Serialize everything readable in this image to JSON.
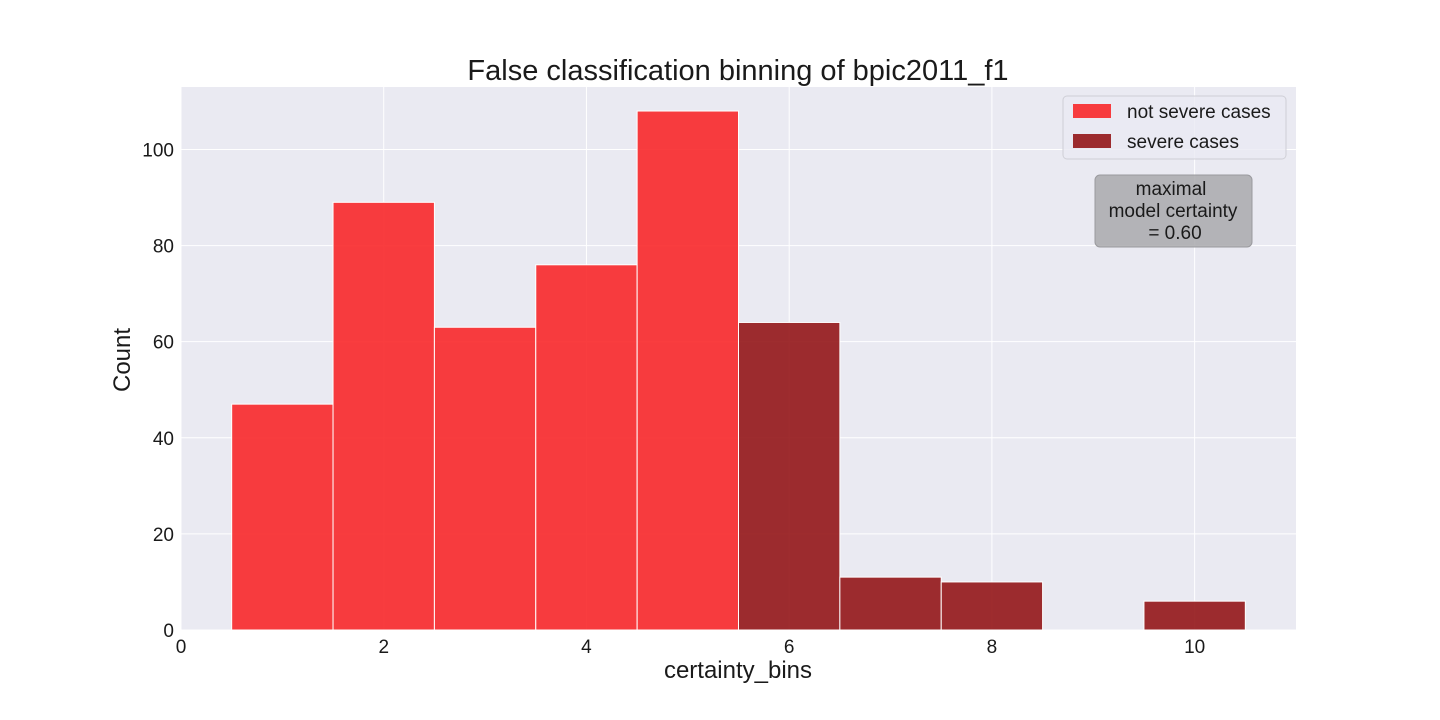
{
  "chart_data": {
    "type": "bar",
    "title": "False classification binning of bpic2011_f1",
    "xlabel": "certainty_bins",
    "ylabel": "Count",
    "xlim": [
      0,
      11
    ],
    "ylim": [
      0,
      113
    ],
    "xticks": [
      0,
      2,
      4,
      6,
      8,
      10
    ],
    "yticks": [
      0,
      20,
      40,
      60,
      80,
      100
    ],
    "grid": true,
    "bar_width": 1,
    "legend_position": "upper right",
    "series": [
      {
        "name": "not severe cases",
        "color": "#f8282a",
        "x": [
          1,
          2,
          3,
          4,
          5
        ],
        "values": [
          47,
          89,
          63,
          76,
          108
        ]
      },
      {
        "name": "severe cases",
        "color": "#941618",
        "x": [
          6,
          7,
          8,
          9,
          10
        ],
        "values": [
          64,
          11,
          10,
          0,
          6
        ]
      }
    ],
    "annotation": {
      "lines": [
        "maximal",
        "model certainty",
        "= 0.60"
      ]
    }
  }
}
